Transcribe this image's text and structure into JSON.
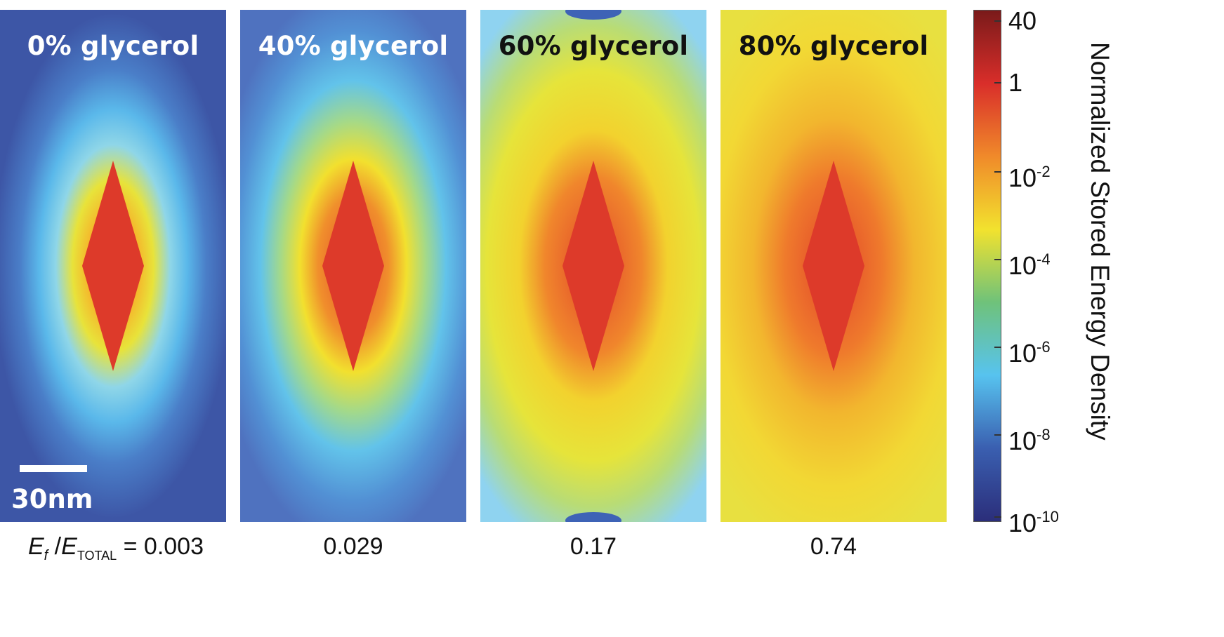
{
  "panels": [
    {
      "title": "0% glycerol",
      "fraction": "0.003",
      "title_color": "#ffffff",
      "background_color": "#3d56a6"
    },
    {
      "title": "40% glycerol",
      "fraction": "0.029",
      "title_color": "#ffffff",
      "background_color": "#4f72bf"
    },
    {
      "title": "60% glycerol",
      "fraction": "0.17",
      "title_color": "#111111",
      "background_color": "#8fd3f0"
    },
    {
      "title": "80% glycerol",
      "fraction": "0.74",
      "title_color": "#111111",
      "background_color": "#e8e040"
    }
  ],
  "fraction_label": {
    "E": "E",
    "f": "f",
    "E2": "E",
    "total": "TOTAL",
    "eq": " = "
  },
  "scalebar": {
    "label": "30nm"
  },
  "colorbar": {
    "title": "Normalized Stored Energy Density",
    "ticks": [
      {
        "base": "40",
        "exp": ""
      },
      {
        "base": "1",
        "exp": ""
      },
      {
        "base": "10",
        "exp": "-2"
      },
      {
        "base": "10",
        "exp": "-4"
      },
      {
        "base": "10",
        "exp": "-6"
      },
      {
        "base": "10",
        "exp": "-8"
      },
      {
        "base": "10",
        "exp": "-10"
      }
    ],
    "colors": [
      "#7a1a1a",
      "#d92e2a",
      "#f08a2a",
      "#f2e22e",
      "#6fc27a",
      "#57c3ef",
      "#3a5fb0",
      "#2b2e7a"
    ]
  }
}
